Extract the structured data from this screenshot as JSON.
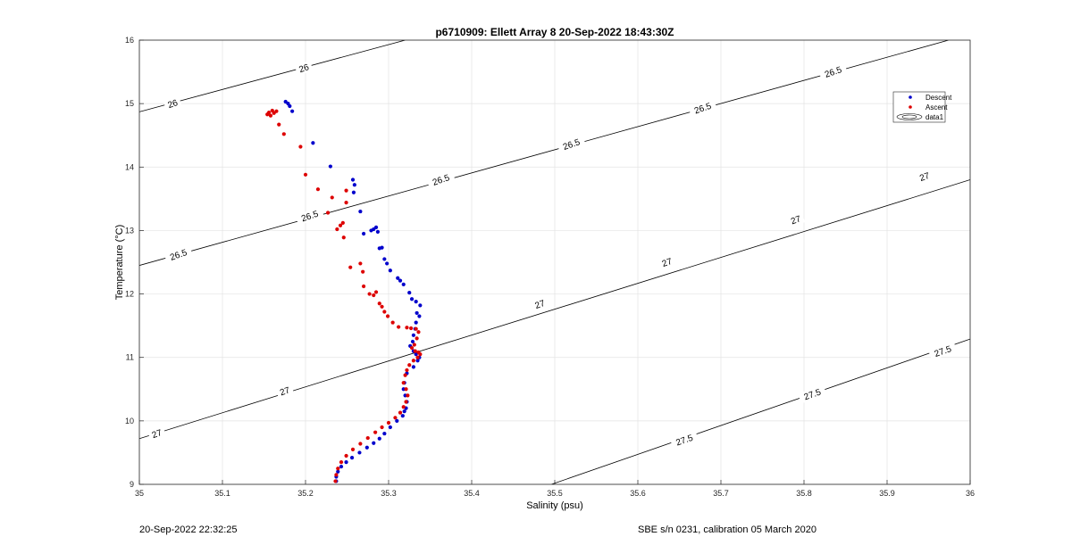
{
  "chart_data": {
    "type": "scatter",
    "title": "p6710909: Ellett Array 8 20-Sep-2022 18:43:30Z",
    "xlabel": "Salinity (psu)",
    "ylabel": "Temperature (°C)",
    "xlim": [
      35,
      36
    ],
    "ylim": [
      9,
      16
    ],
    "xticks": [
      "35",
      "35.1",
      "35.2",
      "35.3",
      "35.4",
      "35.5",
      "35.6",
      "35.7",
      "35.8",
      "35.9",
      "36"
    ],
    "yticks": [
      "9",
      "10",
      "11",
      "12",
      "13",
      "14",
      "15",
      "16"
    ],
    "grid": true,
    "legend_position": "top-right",
    "series": [
      {
        "name": "Descent",
        "color": "#0000cc",
        "marker": "dot",
        "x": [
          35.176,
          35.179,
          35.184,
          35.181,
          35.209,
          35.23,
          35.257,
          35.259,
          35.258,
          35.266,
          35.27,
          35.279,
          35.282,
          35.285,
          35.287,
          35.292,
          35.289,
          35.295,
          35.298,
          35.302,
          35.311,
          35.314,
          35.318,
          35.325,
          35.328,
          35.333,
          35.338,
          35.334,
          35.337,
          35.333,
          35.332,
          35.33,
          35.329,
          35.326,
          35.33,
          35.333,
          35.337,
          35.335,
          35.33,
          35.322,
          35.319,
          35.318,
          35.32,
          35.322,
          35.321,
          35.319,
          35.317,
          35.31,
          35.302,
          35.295,
          35.289,
          35.282,
          35.274,
          35.265,
          35.256,
          35.249,
          35.243,
          35.239,
          35.237,
          35.237
        ],
        "y": [
          15.03,
          15.0,
          14.88,
          14.96,
          14.38,
          14.01,
          13.8,
          13.72,
          13.6,
          13.3,
          12.95,
          13.0,
          13.02,
          13.05,
          12.98,
          12.73,
          12.72,
          12.55,
          12.48,
          12.37,
          12.25,
          12.21,
          12.15,
          12.02,
          11.92,
          11.88,
          11.82,
          11.7,
          11.65,
          11.55,
          11.45,
          11.35,
          11.25,
          11.18,
          11.1,
          11.05,
          11.0,
          10.95,
          10.85,
          10.75,
          10.6,
          10.5,
          10.4,
          10.3,
          10.2,
          10.15,
          10.08,
          10.0,
          9.9,
          9.8,
          9.72,
          9.65,
          9.58,
          9.5,
          9.42,
          9.35,
          9.28,
          9.2,
          9.12,
          9.05
        ]
      },
      {
        "name": "Ascent",
        "color": "#dd0000",
        "marker": "dot",
        "x": [
          35.154,
          35.156,
          35.158,
          35.16,
          35.162,
          35.165,
          35.168,
          35.174,
          35.194,
          35.2,
          35.215,
          35.232,
          35.227,
          35.245,
          35.242,
          35.238,
          35.249,
          35.246,
          35.249,
          35.254,
          35.266,
          35.269,
          35.27,
          35.277,
          35.282,
          35.285,
          35.289,
          35.292,
          35.295,
          35.299,
          35.305,
          35.312,
          35.322,
          35.327,
          35.333,
          35.336,
          35.334,
          35.331,
          35.328,
          35.332,
          35.336,
          35.338,
          35.335,
          35.33,
          35.325,
          35.322,
          35.32,
          35.318,
          35.321,
          35.323,
          35.321,
          35.318,
          35.314,
          35.308,
          35.3,
          35.292,
          35.284,
          35.275,
          35.266,
          35.257,
          35.249,
          35.243,
          35.239,
          35.237,
          35.236
        ],
        "y": [
          14.83,
          14.86,
          14.81,
          14.89,
          14.85,
          14.88,
          14.67,
          14.52,
          14.32,
          13.88,
          13.65,
          13.52,
          13.28,
          13.12,
          13.08,
          13.02,
          13.44,
          12.89,
          13.63,
          12.42,
          12.48,
          12.35,
          12.12,
          12.0,
          11.98,
          12.03,
          11.85,
          11.8,
          11.72,
          11.65,
          11.55,
          11.48,
          11.47,
          11.46,
          11.45,
          11.4,
          11.3,
          11.2,
          11.15,
          11.1,
          11.08,
          11.05,
          11.0,
          10.95,
          10.88,
          10.8,
          10.72,
          10.6,
          10.5,
          10.4,
          10.3,
          10.22,
          10.13,
          10.05,
          9.97,
          9.9,
          9.82,
          9.73,
          9.64,
          9.55,
          9.45,
          9.35,
          9.25,
          9.15,
          9.05
        ]
      }
    ],
    "legend_entries": [
      "Descent",
      "Ascent",
      "data1"
    ],
    "contour_levels": [
      {
        "label": "26",
        "x": [
          35.0,
          35.32
        ],
        "y": [
          14.87,
          16.0
        ]
      },
      {
        "label": "26.5",
        "x": [
          35.0,
          35.974
        ],
        "y": [
          12.45,
          16.0
        ]
      },
      {
        "label": "27",
        "x": [
          35.0,
          36.0
        ],
        "y": [
          9.72,
          13.8
        ]
      },
      {
        "label": "27.5",
        "x": [
          35.496,
          36.0
        ],
        "y": [
          9.0,
          11.29
        ]
      }
    ],
    "contour_labels": [
      {
        "text": "26",
        "x": 35.04,
        "y": 15.0,
        "angle": -19
      },
      {
        "text": "26",
        "x": 35.198,
        "y": 15.56,
        "angle": -19
      },
      {
        "text": "26.5",
        "x": 35.047,
        "y": 12.62,
        "angle": -19
      },
      {
        "text": "26.5",
        "x": 35.205,
        "y": 13.23,
        "angle": -19
      },
      {
        "text": "26.5",
        "x": 35.363,
        "y": 13.8,
        "angle": -19
      },
      {
        "text": "26.5",
        "x": 35.52,
        "y": 14.36,
        "angle": -19
      },
      {
        "text": "26.5",
        "x": 35.678,
        "y": 14.93,
        "angle": -19
      },
      {
        "text": "26.5",
        "x": 35.835,
        "y": 15.5,
        "angle": -19
      },
      {
        "text": "27",
        "x": 35.021,
        "y": 9.8,
        "angle": -19
      },
      {
        "text": "27",
        "x": 35.175,
        "y": 10.47,
        "angle": -19
      },
      {
        "text": "27",
        "x": 35.482,
        "y": 11.84,
        "angle": -19
      },
      {
        "text": "27",
        "x": 35.635,
        "y": 12.5,
        "angle": -19
      },
      {
        "text": "27",
        "x": 35.79,
        "y": 13.17,
        "angle": -19
      },
      {
        "text": "27",
        "x": 35.945,
        "y": 13.85,
        "angle": -19
      },
      {
        "text": "27.5",
        "x": 35.656,
        "y": 9.7,
        "angle": -19
      },
      {
        "text": "27.5",
        "x": 35.81,
        "y": 10.42,
        "angle": -19
      },
      {
        "text": "27.5",
        "x": 35.967,
        "y": 11.1,
        "angle": -19
      }
    ]
  },
  "footer": {
    "left": "20-Sep-2022 22:32:25",
    "right": "SBE s/n 0231, calibration 05 March 2020"
  }
}
